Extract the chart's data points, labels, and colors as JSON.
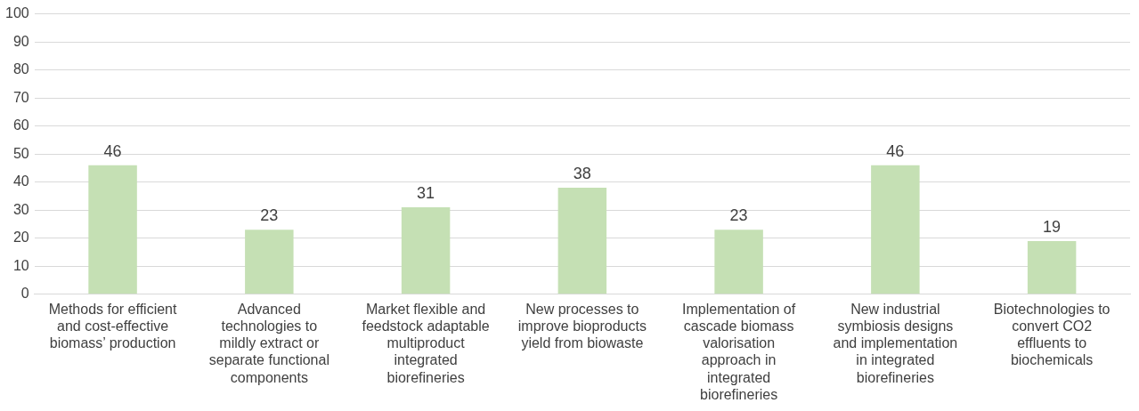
{
  "chart_data": {
    "type": "bar",
    "categories": [
      "Methods for efficient and cost-effective biomass’ production",
      "Advanced technologies to mildly extract or separate functional components",
      "Market flexible and feedstock adaptable multiproduct integrated biorefineries",
      "New processes to improve bioproducts yield from biowaste",
      "Implementation of cascade biomass valorisation approach in integrated biorefineries",
      "New industrial symbiosis designs and implementation in integrated biorefineries",
      "Biotechnologies to convert CO2 effluents to biochemicals"
    ],
    "values": [
      46,
      23,
      31,
      38,
      23,
      46,
      19
    ],
    "color": "#c5e0b4",
    "ylim": [
      0,
      100
    ],
    "yticks": [
      0,
      10,
      20,
      30,
      40,
      50,
      60,
      70,
      80,
      90,
      100
    ],
    "grid": "y",
    "data_labels": true
  }
}
